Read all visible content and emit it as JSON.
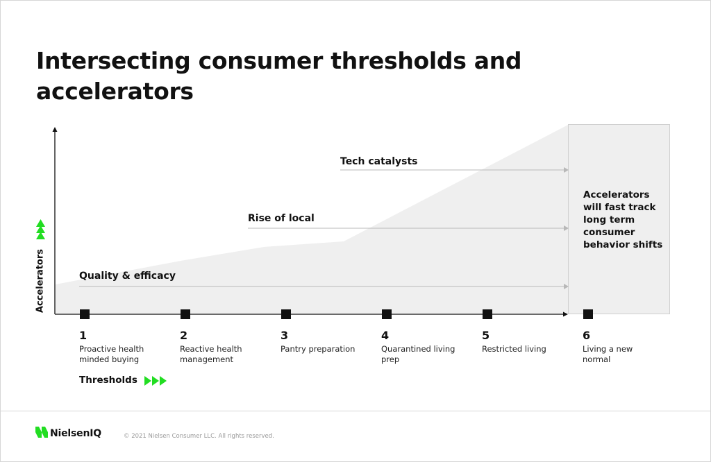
{
  "title": "Intersecting consumer thresholds and accelerators",
  "colors": {
    "accent": "#22dd22",
    "fill": "#efefef",
    "ink": "#111111",
    "arrow": "#b8b8b8"
  },
  "y_axis": {
    "label": "Accelerators",
    "icon": "triple-chevron-up-icon"
  },
  "accelerators": [
    {
      "label": "Quality & efficacy"
    },
    {
      "label": "Rise of local"
    },
    {
      "label": "Tech catalysts"
    }
  ],
  "note": "Accelerators will fast track long term consumer behavior shifts",
  "thresholds": [
    {
      "num": "1",
      "desc": "Proactive health minded buying"
    },
    {
      "num": "2",
      "desc": "Reactive health management"
    },
    {
      "num": "3",
      "desc": "Pantry preparation"
    },
    {
      "num": "4",
      "desc": "Quarantined living prep"
    },
    {
      "num": "5",
      "desc": "Restricted living"
    },
    {
      "num": "6",
      "desc": "Living a new normal"
    }
  ],
  "x_axis": {
    "label": "Thresholds",
    "icon": "triple-chevron-right-icon"
  },
  "footer": {
    "brand": "NielsenIQ",
    "copyright": "© 2021 Nielsen Consumer LLC. All rights reserved."
  }
}
